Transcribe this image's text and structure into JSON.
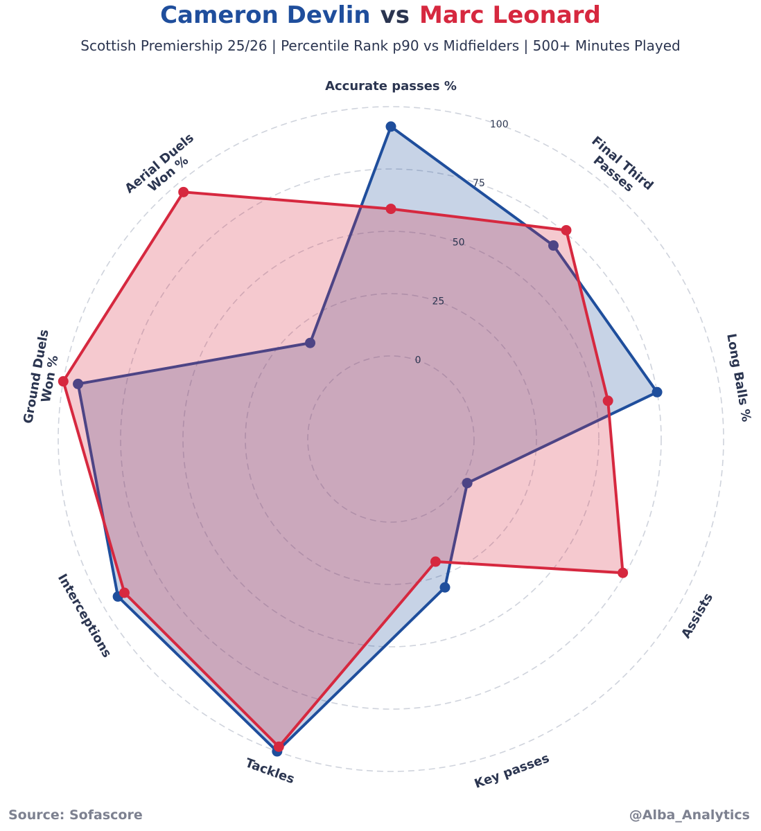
{
  "title": {
    "player1": "Cameron Devlin",
    "vs": "vs",
    "player2": "Marc Leonard"
  },
  "subtitle": "Scottish Premiership 25/26 | Percentile Rank p90 vs Midfielders | 500+ Minutes Played",
  "footer": {
    "source": "Source: Sofascore",
    "handle": "@Alba_Analytics"
  },
  "colors": {
    "player1": "#1f4e9c",
    "player2": "#d6283f",
    "text": "#2b3550",
    "grid": "#cfd3dc"
  },
  "chart_data": {
    "type": "radar",
    "categories": [
      [
        "Accurate passes %"
      ],
      [
        "Final Third",
        "Passes"
      ],
      [
        "Long Balls %"
      ],
      [
        "Assists"
      ],
      [
        "Key passes"
      ],
      [
        "Tackles"
      ],
      [
        "Interceptions"
      ],
      [
        "Ground Duels",
        "Won %"
      ],
      [
        "Aerial Duels",
        "Won %"
      ]
    ],
    "series": [
      {
        "name": "Cameron Devlin",
        "values": [
          92,
          68,
          75,
          2,
          30,
          100,
          93,
          94,
          17
        ]
      },
      {
        "name": "Marc Leonard",
        "values": [
          59,
          76,
          55,
          74,
          19,
          98,
          90,
          100,
          96
        ]
      }
    ],
    "rlim": [
      0,
      100
    ],
    "rticks": [
      0,
      25,
      50,
      75,
      100
    ],
    "grid": true
  }
}
